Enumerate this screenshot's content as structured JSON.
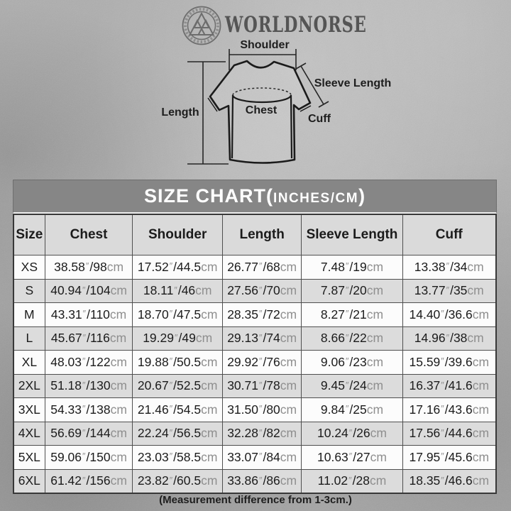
{
  "brand": {
    "name": "WORLDNORSE"
  },
  "diagram": {
    "labels": {
      "shoulder": "Shoulder",
      "sleeve_length": "Sleeve Length",
      "length": "Length",
      "chest": "Chest",
      "cuff": "Cuff"
    }
  },
  "size_chart": {
    "title_main": "SIZE CHART(",
    "title_sub": "INCHES/CM",
    "title_close": ")",
    "columns": [
      "Size",
      "Chest",
      "Shoulder",
      "Length",
      "Sleeve Length",
      "Cuff"
    ],
    "unit_inch_mark": "″",
    "unit_separator": "/",
    "unit_cm": "cm",
    "rows": [
      {
        "size": "XS",
        "cells": [
          {
            "in": "38.58",
            "cm": "98"
          },
          {
            "in": "17.52",
            "cm": "44.5"
          },
          {
            "in": "26.77",
            "cm": "68"
          },
          {
            "in": "7.48",
            "cm": "19"
          },
          {
            "in": "13.38",
            "cm": "34"
          }
        ]
      },
      {
        "size": "S",
        "cells": [
          {
            "in": "40.94",
            "cm": "104"
          },
          {
            "in": "18.11",
            "cm": "46"
          },
          {
            "in": "27.56",
            "cm": "70"
          },
          {
            "in": "7.87",
            "cm": "20"
          },
          {
            "in": "13.77",
            "cm": "35"
          }
        ]
      },
      {
        "size": "M",
        "cells": [
          {
            "in": "43.31",
            "cm": "110"
          },
          {
            "in": "18.70",
            "cm": "47.5"
          },
          {
            "in": "28.35",
            "cm": "72"
          },
          {
            "in": "8.27",
            "cm": "21"
          },
          {
            "in": "14.40",
            "cm": "36.6"
          }
        ]
      },
      {
        "size": "L",
        "cells": [
          {
            "in": "45.67",
            "cm": "116"
          },
          {
            "in": "19.29",
            "cm": "49"
          },
          {
            "in": "29.13",
            "cm": "74"
          },
          {
            "in": "8.66",
            "cm": "22"
          },
          {
            "in": "14.96",
            "cm": "38"
          }
        ]
      },
      {
        "size": "XL",
        "cells": [
          {
            "in": "48.03",
            "cm": "122"
          },
          {
            "in": "19.88",
            "cm": "50.5"
          },
          {
            "in": "29.92",
            "cm": "76"
          },
          {
            "in": "9.06",
            "cm": "23"
          },
          {
            "in": "15.59",
            "cm": "39.6"
          }
        ]
      },
      {
        "size": "2XL",
        "cells": [
          {
            "in": "51.18",
            "cm": "130"
          },
          {
            "in": "20.67",
            "cm": "52.5"
          },
          {
            "in": "30.71",
            "cm": "78"
          },
          {
            "in": "9.45",
            "cm": "24"
          },
          {
            "in": "16.37",
            "cm": "41.6"
          }
        ]
      },
      {
        "size": "3XL",
        "cells": [
          {
            "in": "54.33",
            "cm": "138"
          },
          {
            "in": "21.46",
            "cm": "54.5"
          },
          {
            "in": "31.50",
            "cm": "80"
          },
          {
            "in": "9.84",
            "cm": "25"
          },
          {
            "in": "17.16",
            "cm": "43.6"
          }
        ]
      },
      {
        "size": "4XL",
        "cells": [
          {
            "in": "56.69",
            "cm": "144"
          },
          {
            "in": "22.24",
            "cm": "56.5"
          },
          {
            "in": "32.28",
            "cm": "82"
          },
          {
            "in": "10.24",
            "cm": "26"
          },
          {
            "in": "17.56",
            "cm": "44.6"
          }
        ]
      },
      {
        "size": "5XL",
        "cells": [
          {
            "in": "59.06",
            "cm": "150"
          },
          {
            "in": "23.03",
            "cm": "58.5"
          },
          {
            "in": "33.07",
            "cm": "84"
          },
          {
            "in": "10.63",
            "cm": "27"
          },
          {
            "in": "17.95",
            "cm": "45.6"
          }
        ]
      },
      {
        "size": "6XL",
        "cells": [
          {
            "in": "61.42",
            "cm": "156"
          },
          {
            "in": "23.82",
            "cm": "60.5"
          },
          {
            "in": "33.86",
            "cm": "86"
          },
          {
            "in": "11.02",
            "cm": "28"
          },
          {
            "in": "18.35",
            "cm": "46.6"
          }
        ]
      }
    ]
  },
  "footer": {
    "note": "(Measurement difference from 1-3cm.)"
  },
  "colors": {
    "background": "#aeaeae",
    "title_bar_bg": "#868686",
    "header_row_bg": "#dadada",
    "row_light": "#fcfcfc",
    "row_dark": "#dcdcdc",
    "grid_line": "#4f4f4f",
    "outer_border": "#383838",
    "ink": "#1b1b1b",
    "unit_gray": "#8f8f8f"
  }
}
